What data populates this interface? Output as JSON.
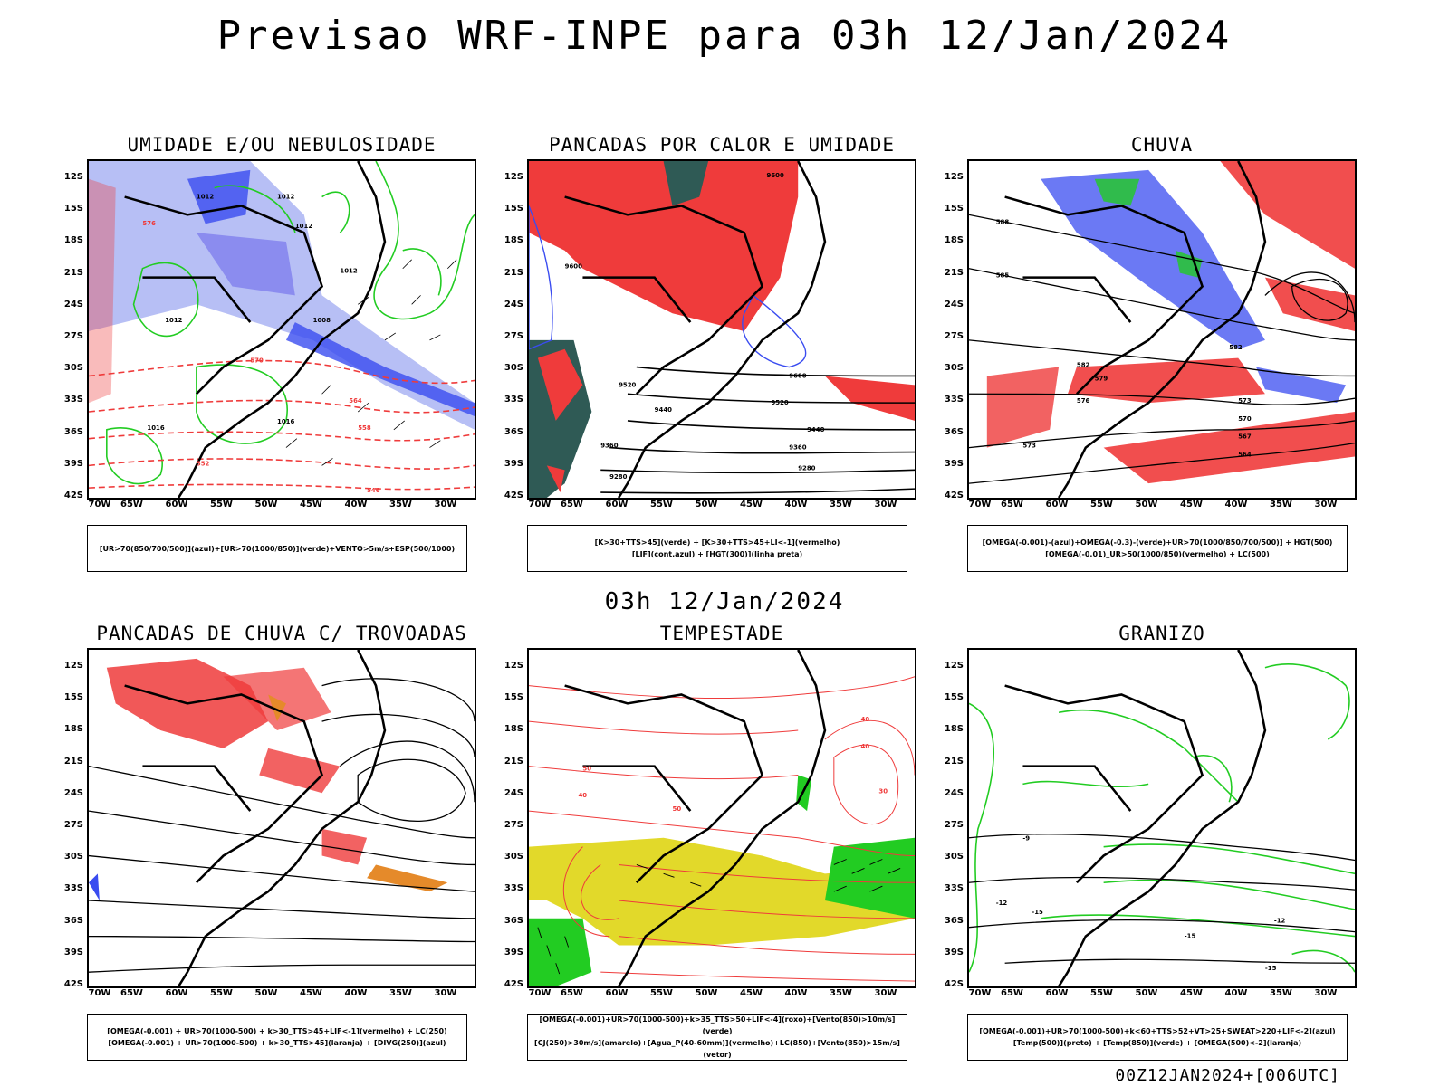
{
  "header": {
    "title": "Previsao WRF-INPE  para 03h 12/Jan/2024"
  },
  "middle_title": "03h 12/Jan/2024",
  "footer": "00Z12JAN2024+[006UTC]",
  "axes": {
    "lat_labels": [
      "12S",
      "15S",
      "18S",
      "21S",
      "24S",
      "27S",
      "30S",
      "33S",
      "36S",
      "39S",
      "42S"
    ],
    "lon_labels": [
      "70W",
      "65W",
      "60W",
      "55W",
      "50W",
      "45W",
      "40W",
      "35W",
      "30W"
    ]
  },
  "panels": [
    {
      "title": "UMIDADE E/OU NEBULOSIDADE",
      "legend": [
        "[UR>70(850/700/500)](azul)+[UR>70(1000/850)](verde)+VENTO>5m/s+ESP(500/1000)"
      ],
      "contour_labels": [
        "1012",
        "1012",
        "1012",
        "1012",
        "1012",
        "1016",
        "1016",
        "1008",
        "576",
        "570",
        "564",
        "558",
        "552",
        "546"
      ]
    },
    {
      "title": "PANCADAS POR CALOR E UMIDADE",
      "legend": [
        "[K>30+TTS>45](verde) + [K>30+TTS>45+LI<-1](vermelho)",
        "[LIF](cont.azul) + [HGT(300)](linha preta)"
      ],
      "contour_labels": [
        "9600",
        "9600",
        "9600",
        "9520",
        "9520",
        "9440",
        "9440",
        "9360",
        "9360",
        "9280",
        "9280"
      ]
    },
    {
      "title": "CHUVA",
      "legend": [
        "[OMEGA(-0.001)-(azul)+OMEGA(-0.3)-(verde)+UR>70(1000/850/700/500)] + HGT(500)",
        "[OMEGA(-0.01)_UR>50(1000/850)(vermelho) + LC(500)"
      ],
      "contour_labels": [
        "582",
        "582",
        "579",
        "576",
        "573",
        "570",
        "567",
        "564",
        "573",
        "588",
        "585"
      ]
    },
    {
      "title": "PANCADAS DE CHUVA C/ TROVOADAS",
      "legend": [
        "[OMEGA(-0.001) + UR>70(1000-500) + k>30_TTS>45+LIF<-1](vermelho) + LC(250)",
        "[OMEGA(-0.001) + UR>70(1000-500) + k>30_TTS>45](laranja) + [DIVG(250)](azul)"
      ],
      "contour_labels": []
    },
    {
      "title": "TEMPESTADE",
      "legend": [
        "[OMEGA(-0.001)+UR>70(1000-500)+k>35_TTS>50+LIF<-4](roxo)+[Vento(850)>10m/s](verde)",
        "[CJ(250)>30m/s](amarelo)+[Agua_P(40-60mm)](vermelho)+LC(850)+[Vento(850)>15m/s](vetor)"
      ],
      "contour_labels": [
        "40",
        "40",
        "50",
        "50",
        "40",
        "30"
      ]
    },
    {
      "title": "GRANIZO",
      "legend": [
        "[OMEGA(-0.001)+UR>70(1000-500)+k<60+TTS>52+VT>25+SWEAT>220+LIF<-2](azul)",
        "[Temp(500)](preto) + [Temp(850)](verde) + [OMEGA(500)<-2](laranja)"
      ],
      "contour_labels": [
        "-9",
        "-12",
        "-15",
        "-15",
        "-12",
        "-15"
      ]
    }
  ],
  "colors": {
    "red": "#ef3b3b",
    "green": "#22cc22",
    "blue": "#3a4cf0",
    "lightblue": "#b7bff5",
    "purple": "#8080ee",
    "yellow": "#e2d92a",
    "orange": "#e58a2a",
    "darkteal": "#2f5a55"
  }
}
